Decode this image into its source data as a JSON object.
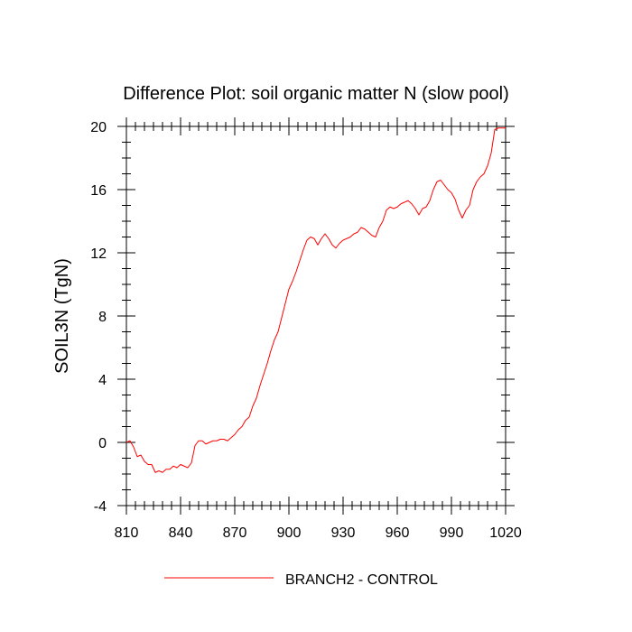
{
  "chart_data": {
    "type": "line",
    "title": "Difference Plot: soil organic matter N (slow pool)",
    "xlabel": "",
    "ylabel": "SOIL3N  (TgN)",
    "xlim": [
      810,
      1020
    ],
    "ylim": [
      -4,
      20
    ],
    "x_ticks": [
      810,
      840,
      870,
      900,
      930,
      960,
      990,
      1020
    ],
    "y_ticks": [
      -4,
      0,
      4,
      8,
      12,
      16,
      20
    ],
    "x_tick_labels": [
      "810",
      "840",
      "870",
      "900",
      "930",
      "960",
      "990",
      "1020"
    ],
    "y_tick_labels": [
      "-4",
      "0",
      "4",
      "8",
      "12",
      "16",
      "20"
    ],
    "x_minor_step": 5,
    "y_minor_step": 1,
    "grid": false,
    "legend_position": "bottom-center",
    "series": [
      {
        "name": "BRANCH2 - CONTROL",
        "color": "#ff0000",
        "x": [
          810,
          812,
          814,
          816,
          818,
          820,
          822,
          824,
          826,
          828,
          830,
          832,
          834,
          836,
          838,
          840,
          842,
          844,
          846,
          848,
          850,
          852,
          854,
          856,
          858,
          860,
          862,
          864,
          866,
          868,
          870,
          872,
          874,
          876,
          878,
          880,
          882,
          884,
          886,
          888,
          890,
          892,
          894,
          896,
          898,
          900,
          902,
          904,
          906,
          908,
          910,
          912,
          914,
          916,
          918,
          920,
          922,
          924,
          926,
          928,
          930,
          932,
          934,
          936,
          938,
          940,
          942,
          944,
          946,
          948,
          950,
          952,
          954,
          956,
          958,
          960,
          962,
          964,
          966,
          968,
          970,
          972,
          974,
          976,
          978,
          980,
          982,
          984,
          986,
          988,
          990,
          992,
          994,
          996,
          998,
          1000,
          1002,
          1004,
          1006,
          1008,
          1010,
          1012,
          1014,
          1016,
          1018,
          1020
        ],
        "values": [
          0.0,
          0.1,
          -0.3,
          -0.9,
          -0.8,
          -1.2,
          -1.4,
          -1.4,
          -1.9,
          -1.8,
          -1.9,
          -1.7,
          -1.7,
          -1.5,
          -1.6,
          -1.4,
          -1.5,
          -1.6,
          -1.3,
          -0.2,
          0.1,
          0.1,
          -0.1,
          0.0,
          0.1,
          0.1,
          0.2,
          0.2,
          0.1,
          0.3,
          0.5,
          0.8,
          1.0,
          1.4,
          1.6,
          2.3,
          2.8,
          3.6,
          4.3,
          5.0,
          5.8,
          6.5,
          7.0,
          7.9,
          8.8,
          9.7,
          10.2,
          10.8,
          11.5,
          12.2,
          12.8,
          13.0,
          12.9,
          12.5,
          12.9,
          13.2,
          12.9,
          12.5,
          12.3,
          12.6,
          12.8,
          12.9,
          13.0,
          13.2,
          13.3,
          13.6,
          13.5,
          13.3,
          13.1,
          13.0,
          13.6,
          14.0,
          14.7,
          14.9,
          14.8,
          14.9,
          15.1,
          15.2,
          15.3,
          15.1,
          14.8,
          14.4,
          14.8,
          14.9,
          15.3,
          16.0,
          16.5,
          16.6,
          16.3,
          16.0,
          15.8,
          15.4,
          14.7,
          14.2,
          14.7,
          15.0,
          16.0,
          16.5,
          16.8,
          17.0,
          17.5,
          18.3,
          19.8,
          19.9,
          19.9,
          19.9
        ]
      }
    ]
  }
}
